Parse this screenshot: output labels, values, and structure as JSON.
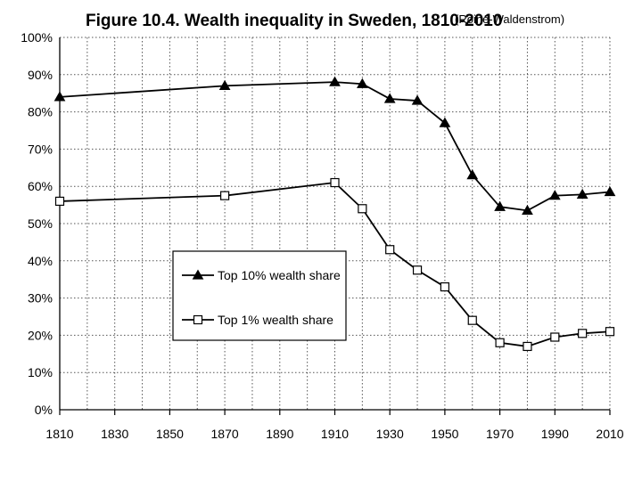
{
  "chart_data": {
    "type": "line",
    "title": "Figure 10.4. Wealth inequality in Sweden, 1810-2010",
    "subtitle": "(Roine-Waldenstrom)",
    "xlabel": "",
    "ylabel": "",
    "xlim": [
      1810,
      2010
    ],
    "ylim": [
      0,
      100
    ],
    "x_ticks": [
      "1810",
      "1830",
      "1850",
      "1870",
      "1890",
      "1910",
      "1930",
      "1950",
      "1970",
      "1990",
      "2010"
    ],
    "y_ticks": [
      "0%",
      "10%",
      "20%",
      "30%",
      "40%",
      "50%",
      "60%",
      "70%",
      "80%",
      "90%",
      "100%"
    ],
    "grid": true,
    "legend_position": "center-left",
    "series": [
      {
        "name": "Top 10% wealth share",
        "marker": "filled-triangle",
        "x": [
          1810,
          1870,
          1910,
          1920,
          1930,
          1940,
          1950,
          1960,
          1970,
          1980,
          1990,
          2000,
          2010
        ],
        "values": [
          84,
          87,
          88,
          87.5,
          83.5,
          83,
          77,
          63,
          54.5,
          53.5,
          57.5,
          57.8,
          58.5
        ]
      },
      {
        "name": "Top 1% wealth share",
        "marker": "open-square",
        "x": [
          1810,
          1870,
          1910,
          1920,
          1930,
          1940,
          1950,
          1960,
          1970,
          1980,
          1990,
          2000,
          2010
        ],
        "values": [
          56,
          57.5,
          61,
          54,
          43,
          37.5,
          33,
          24,
          18,
          17,
          19.5,
          20.5,
          21
        ]
      }
    ]
  }
}
